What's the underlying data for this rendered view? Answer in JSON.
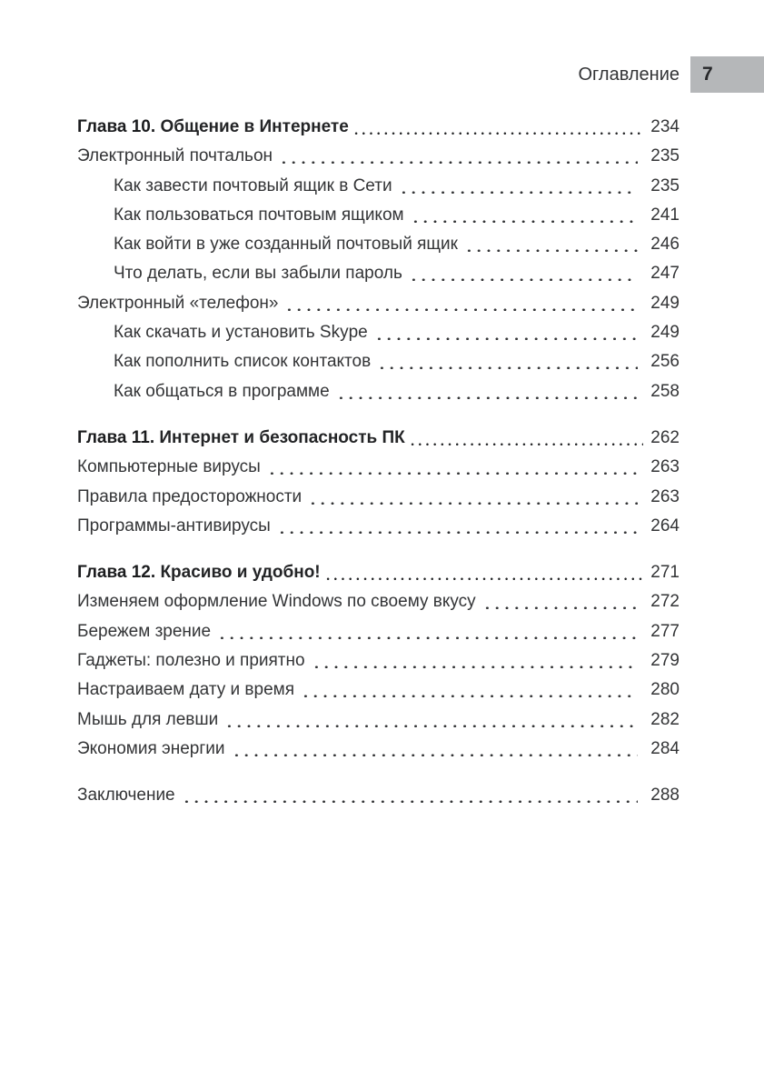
{
  "header": {
    "running_title": "Оглавление",
    "page_number": "7"
  },
  "colors": {
    "badge_bg": "#b5b7b9",
    "text": "#333436",
    "chapter_text": "#232426"
  },
  "toc": {
    "entries": [
      {
        "prefix": "Глава 10.",
        "label": "Общение в Интернете",
        "page": "234",
        "level": "chapter",
        "new_group": false
      },
      {
        "label": "Электронный почтальон",
        "page": "235",
        "level": "section",
        "new_group": false
      },
      {
        "label": "Как завести почтовый ящик в Сети",
        "page": "235",
        "level": "subsection",
        "new_group": false
      },
      {
        "label": "Как пользоваться почтовым ящиком",
        "page": "241",
        "level": "subsection",
        "new_group": false
      },
      {
        "label": "Как войти в уже созданный почтовый ящик",
        "page": "246",
        "level": "subsection",
        "new_group": false
      },
      {
        "label": "Что делать, если вы забыли пароль",
        "page": "247",
        "level": "subsection",
        "new_group": false
      },
      {
        "label": "Электронный «телефон»",
        "page": "249",
        "level": "section",
        "new_group": false
      },
      {
        "label": "Как скачать и установить Skype",
        "page": "249",
        "level": "subsection",
        "new_group": false
      },
      {
        "label": "Как пополнить список контактов",
        "page": "256",
        "level": "subsection",
        "new_group": false
      },
      {
        "label": "Как общаться в программе",
        "page": "258",
        "level": "subsection",
        "new_group": false
      },
      {
        "prefix": "Глава 11.",
        "label": "Интернет и безопасность ПК",
        "page": "262",
        "level": "chapter",
        "new_group": true
      },
      {
        "label": "Компьютерные вирусы",
        "page": "263",
        "level": "section",
        "new_group": false
      },
      {
        "label": "Правила предосторожности",
        "page": "263",
        "level": "section",
        "new_group": false
      },
      {
        "label": "Программы-антивирусы",
        "page": "264",
        "level": "section",
        "new_group": false
      },
      {
        "prefix": "Глава 12.",
        "label": "Красиво и удобно!",
        "page": "271",
        "level": "chapter",
        "new_group": true
      },
      {
        "label": "Изменяем оформление Windows по своему вкусу",
        "page": "272",
        "level": "section",
        "new_group": false
      },
      {
        "label": "Бережем зрение",
        "page": "277",
        "level": "section",
        "new_group": false
      },
      {
        "label": "Гаджеты: полезно и приятно",
        "page": "279",
        "level": "section",
        "new_group": false
      },
      {
        "label": "Настраиваем дату и время",
        "page": "280",
        "level": "section",
        "new_group": false
      },
      {
        "label": "Мышь для левши",
        "page": "282",
        "level": "section",
        "new_group": false
      },
      {
        "label": "Экономия энергии",
        "page": "284",
        "level": "section",
        "new_group": false
      },
      {
        "label": "Заключение",
        "page": "288",
        "level": "section",
        "new_group": true
      }
    ]
  }
}
